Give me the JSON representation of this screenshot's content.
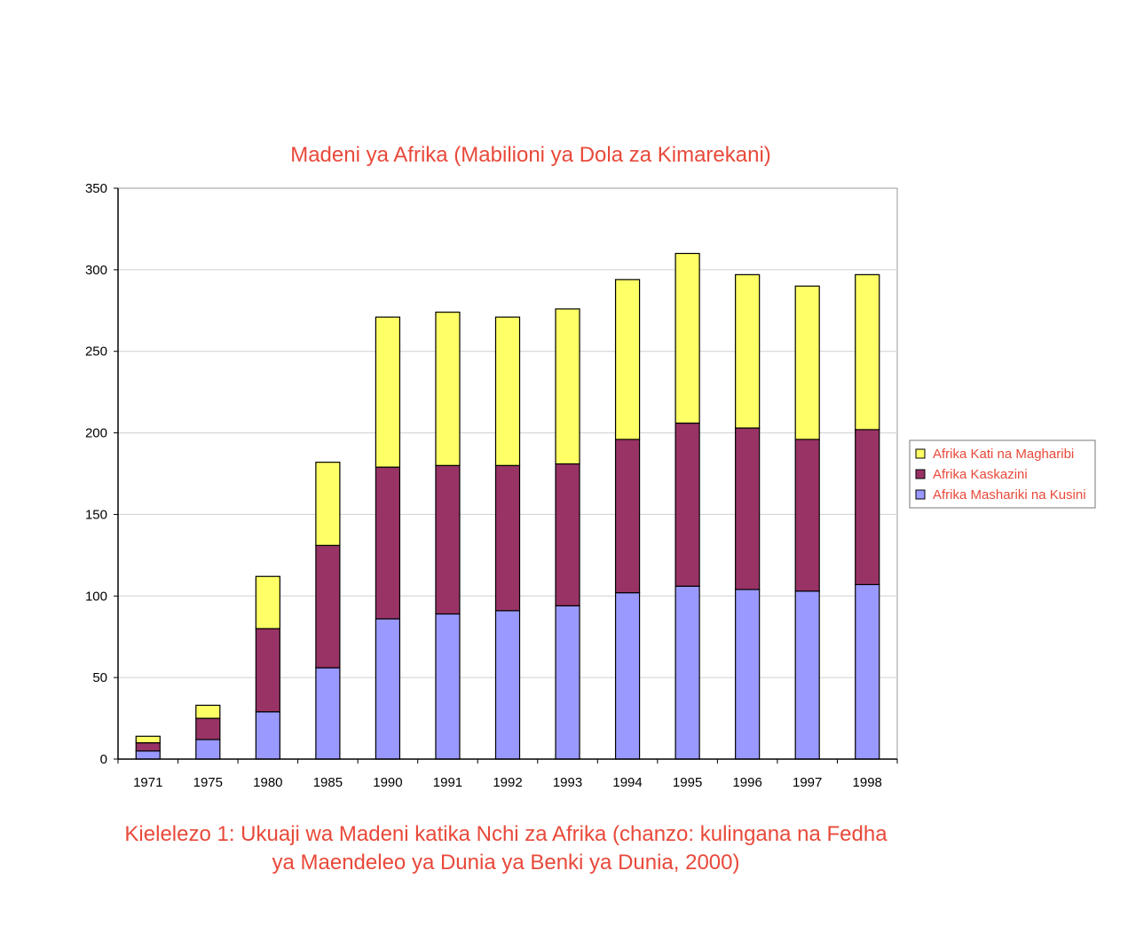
{
  "chart_data": {
    "type": "bar",
    "stacked": true,
    "title": "Madeni ya Afrika (Mabilioni ya Dola za Kimarekani)",
    "xlabel": "",
    "ylabel": "",
    "ylim": [
      0,
      350
    ],
    "yticks": [
      0,
      50,
      100,
      150,
      200,
      250,
      300,
      350
    ],
    "grid": true,
    "legend_position": "right",
    "categories": [
      "1971",
      "1975",
      "1980",
      "1985",
      "1990",
      "1991",
      "1992",
      "1993",
      "1994",
      "1995",
      "1996",
      "1997",
      "1998"
    ],
    "series": [
      {
        "name": "Afrika Mashariki na Kusini",
        "color": "#9999ff",
        "values": [
          5,
          12,
          29,
          56,
          86,
          89,
          91,
          94,
          102,
          106,
          104,
          103,
          107
        ]
      },
      {
        "name": "Afrika Kaskazini",
        "color": "#993366",
        "values": [
          5,
          13,
          51,
          75,
          93,
          91,
          89,
          87,
          94,
          100,
          99,
          93,
          95
        ]
      },
      {
        "name": "Afrika Kati na Magharibi",
        "color": "#ffff66",
        "values": [
          4,
          8,
          32,
          51,
          92,
          94,
          91,
          95,
          98,
          104,
          94,
          94,
          95
        ]
      }
    ]
  },
  "caption": {
    "line1": "Kielelezo 1: Ukuaji wa Madeni katika Nchi za Afrika (chanzo: kulingana na Fedha",
    "line2": "ya Maendeleo ya Dunia ya Benki ya Dunia, 2000)"
  }
}
